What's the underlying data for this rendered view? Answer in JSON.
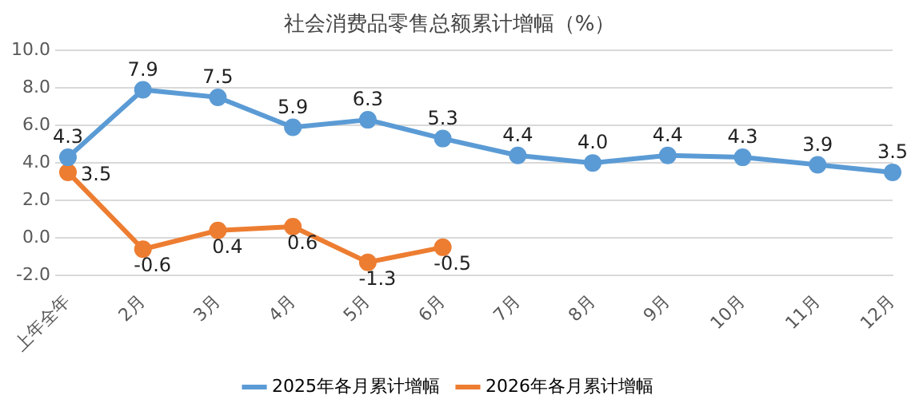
{
  "chart_data": {
    "type": "line",
    "title": "社会消费品零售总额累计增幅（%）",
    "categories": [
      "上年全年",
      "2月",
      "3月",
      "4月",
      "5月",
      "6月",
      "7月",
      "8月",
      "9月",
      "10月",
      "11月",
      "12月"
    ],
    "series": [
      {
        "name": "2025年各月累计增幅",
        "color": "#5b9bd5",
        "values": [
          4.3,
          7.9,
          7.5,
          5.9,
          6.3,
          5.3,
          4.4,
          4.0,
          4.4,
          4.3,
          3.9,
          3.5
        ],
        "value_labels": [
          "4.3",
          "7.9",
          "7.5",
          "5.9",
          "6.3",
          "5.3",
          "4.4",
          "4.0",
          "4.4",
          "4.3",
          "3.9",
          "3.5"
        ]
      },
      {
        "name": "2026年各月累计增幅",
        "color": "#ed7d31",
        "values": [
          3.5,
          -0.6,
          0.4,
          0.6,
          -1.3,
          -0.5,
          null,
          null,
          null,
          null,
          null,
          null
        ],
        "value_labels": [
          "3.5",
          "-0.6",
          "0.4",
          "0.6",
          "-1.3",
          "-0.5",
          null,
          null,
          null,
          null,
          null,
          null
        ]
      }
    ],
    "ylim": [
      -2,
      10
    ],
    "yticks": [
      {
        "value": -2,
        "label": "-2.0"
      },
      {
        "value": 0,
        "label": "0.0"
      },
      {
        "value": 2,
        "label": "2.0"
      },
      {
        "value": 4,
        "label": "4.0"
      },
      {
        "value": 6,
        "label": "6.0"
      },
      {
        "value": 8,
        "label": "8.0"
      },
      {
        "value": 10,
        "label": "10.0"
      }
    ],
    "grid": "y",
    "legend": "bottom",
    "marker": "circle",
    "line_style": "solid"
  }
}
